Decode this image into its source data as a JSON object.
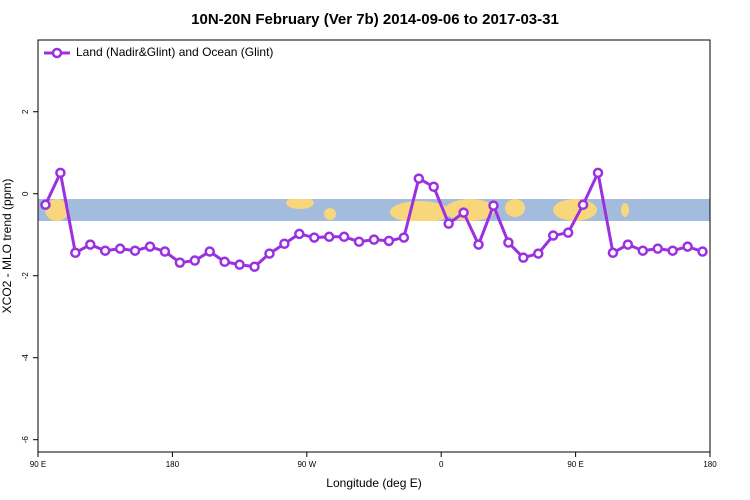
{
  "chart_data": {
    "type": "line",
    "title": "10N-20N February (Ver 7b)   2014-09-06 to 2017-03-31",
    "xlabel": "Longitude (deg E)",
    "ylabel": "XCO2 - MLO trend (ppm)",
    "x": [
      95,
      105,
      115,
      125,
      135,
      145,
      155,
      165,
      175,
      185,
      195,
      205,
      215,
      225,
      235,
      245,
      255,
      265,
      275,
      285,
      295,
      305,
      315,
      325,
      335,
      345,
      355,
      365,
      375,
      385,
      395,
      405,
      415,
      425,
      435,
      445,
      455,
      465,
      475,
      485,
      495,
      505,
      515,
      525,
      535
    ],
    "series": [
      {
        "name": "Land (Nadir&Glint) and Ocean (Glint)",
        "color": "#9b30e0",
        "values": [
          -0.27,
          0.51,
          -1.44,
          -1.24,
          -1.39,
          -1.34,
          -1.39,
          -1.29,
          -1.41,
          -1.68,
          -1.63,
          -1.41,
          -1.66,
          -1.73,
          -1.78,
          -1.46,
          -1.22,
          -0.98,
          -1.07,
          -1.05,
          -1.05,
          -1.17,
          -1.12,
          -1.15,
          -1.07,
          0.37,
          0.17,
          -0.73,
          -0.46,
          -1.24,
          -0.29,
          -1.19,
          -1.56,
          -1.46,
          -1.02,
          -0.95,
          -0.27,
          0.51,
          -1.44,
          -1.24,
          -1.39,
          -1.34,
          -1.39,
          -1.29,
          -1.41
        ]
      }
    ],
    "xlim": [
      90,
      540
    ],
    "xticks": [
      {
        "value": 90,
        "label": "90 E"
      },
      {
        "value": 180,
        "label": "180"
      },
      {
        "value": 270,
        "label": "90 W"
      },
      {
        "value": 360,
        "label": "0"
      },
      {
        "value": 450,
        "label": "90 E"
      },
      {
        "value": 540,
        "label": "180"
      }
    ],
    "ylim": [
      -6.3,
      3.75
    ],
    "yticks": [
      2,
      0,
      -2,
      -4,
      -6
    ],
    "legend": "top-left"
  }
}
